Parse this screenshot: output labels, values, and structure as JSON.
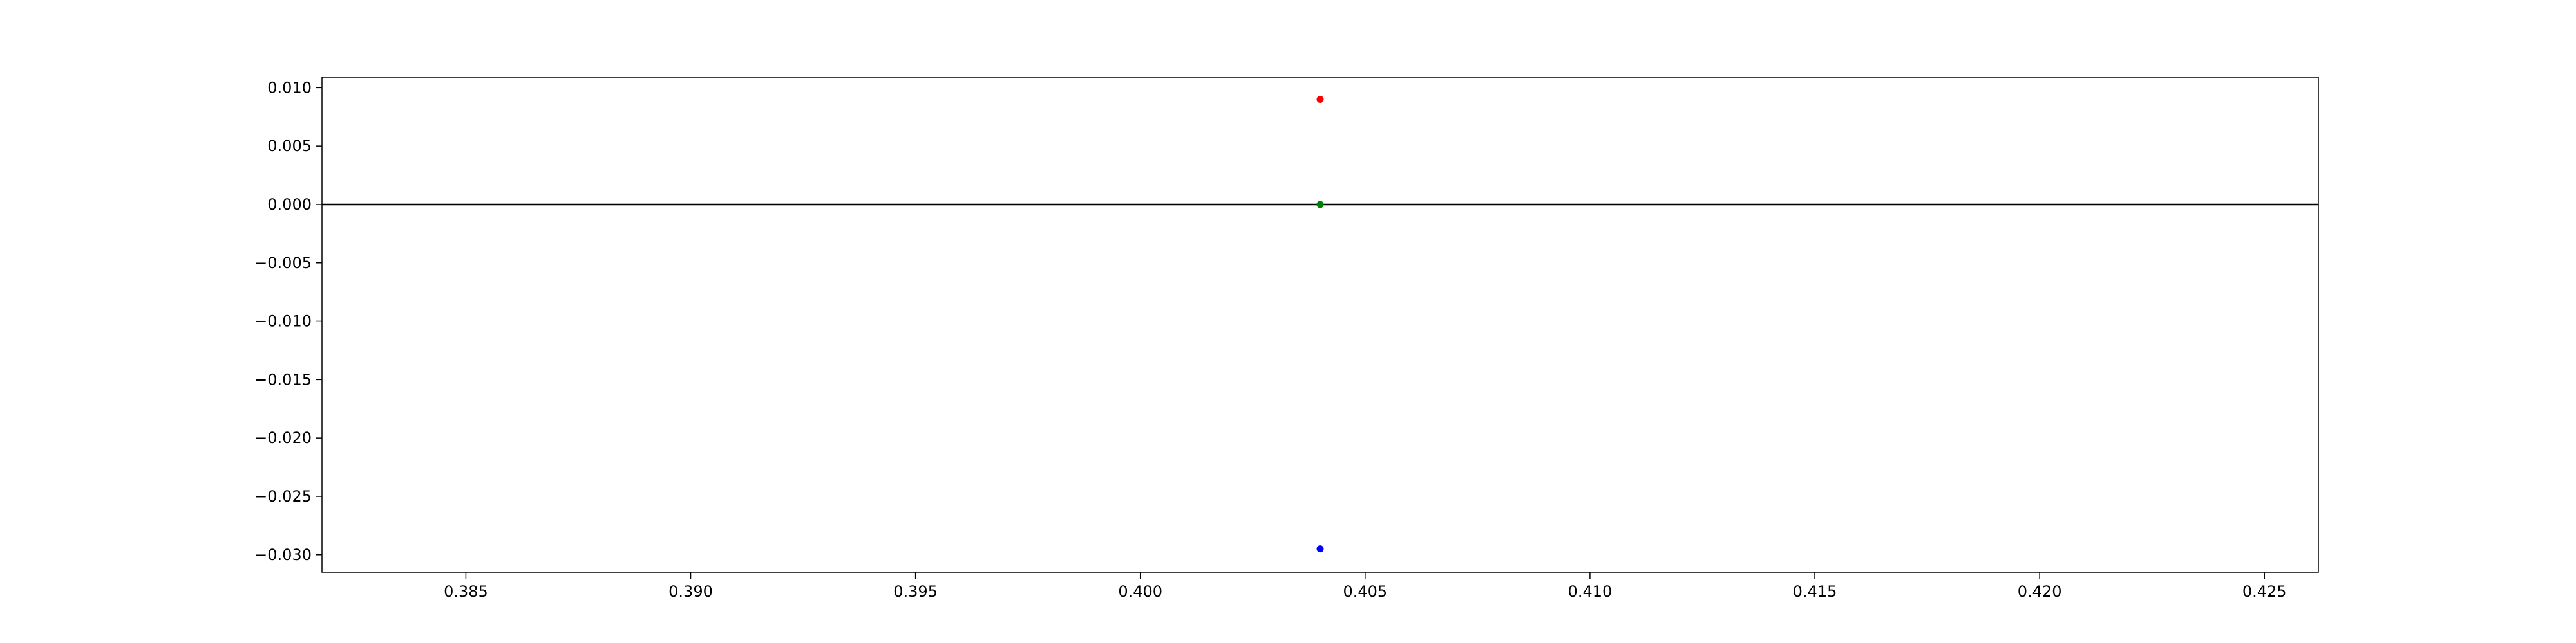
{
  "chart_data": {
    "type": "scatter",
    "title": "",
    "xlabel": "",
    "ylabel": "",
    "xlim": [
      0.3818,
      0.4262
    ],
    "ylim": [
      -0.0315,
      0.0109
    ],
    "grid": false,
    "x_ticks": [
      0.385,
      0.39,
      0.395,
      0.4,
      0.405,
      0.41,
      0.415,
      0.42,
      0.425
    ],
    "x_tick_labels": [
      "0.385",
      "0.390",
      "0.395",
      "0.400",
      "0.405",
      "0.410",
      "0.415",
      "0.420",
      "0.425"
    ],
    "y_ticks": [
      0.01,
      0.005,
      0.0,
      -0.005,
      -0.01,
      -0.015,
      -0.02,
      -0.025,
      -0.03
    ],
    "y_tick_labels": [
      "0.010",
      "0.005",
      "0.000",
      "−0.005",
      "−0.010",
      "−0.015",
      "−0.020",
      "−0.025",
      "−0.030"
    ],
    "reference_line": {
      "y": 0.0,
      "color": "#000000"
    },
    "points": [
      {
        "x": 0.404,
        "y": 0.009,
        "color": "#ff0000"
      },
      {
        "x": 0.404,
        "y": 0.0,
        "color": "#008000"
      },
      {
        "x": 0.404,
        "y": -0.0295,
        "color": "#0000ff"
      }
    ]
  }
}
